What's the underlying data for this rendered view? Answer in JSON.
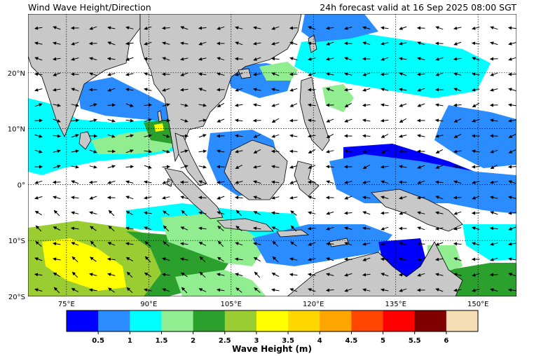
{
  "header": {
    "title": "Wind Wave Height/Direction",
    "valid_time": "24h forecast valid at 16 Sep 2025 08:00 SGT"
  },
  "map": {
    "lon_range": [
      68,
      157
    ],
    "lat_range": [
      -20,
      30.5
    ],
    "lon_ticks": [
      {
        "value": 75,
        "label": "75°E"
      },
      {
        "value": 90,
        "label": "90°E"
      },
      {
        "value": 105,
        "label": "105°E"
      },
      {
        "value": 120,
        "label": "120°E"
      },
      {
        "value": 135,
        "label": "135°E"
      },
      {
        "value": 150,
        "label": "150°E"
      }
    ],
    "lat_ticks": [
      {
        "value": 20,
        "label": "20°N"
      },
      {
        "value": 10,
        "label": "10°N"
      },
      {
        "value": 0,
        "label": "0°"
      },
      {
        "value": -10,
        "label": "10°S"
      },
      {
        "value": -20,
        "label": "20°S"
      }
    ],
    "gridlines": "dotted",
    "land_color": "#c8c8c8",
    "ocean_color": "#ffffff",
    "calm_color": "#ffffff"
  },
  "colorbar": {
    "title": "Wave Height (m)",
    "colors": [
      "#0000ff",
      "#2b8cff",
      "#00ffff",
      "#90ee90",
      "#2ca02c",
      "#9acd32",
      "#ffff00",
      "#ffd700",
      "#ffa500",
      "#ff4500",
      "#ff0000",
      "#800000",
      "#f5deb3"
    ],
    "tick_labels": [
      "0.5",
      "1",
      "1.5",
      "2",
      "2.5",
      "3",
      "3.5",
      "4",
      "4.5",
      "5",
      "5.5",
      "6"
    ]
  }
}
